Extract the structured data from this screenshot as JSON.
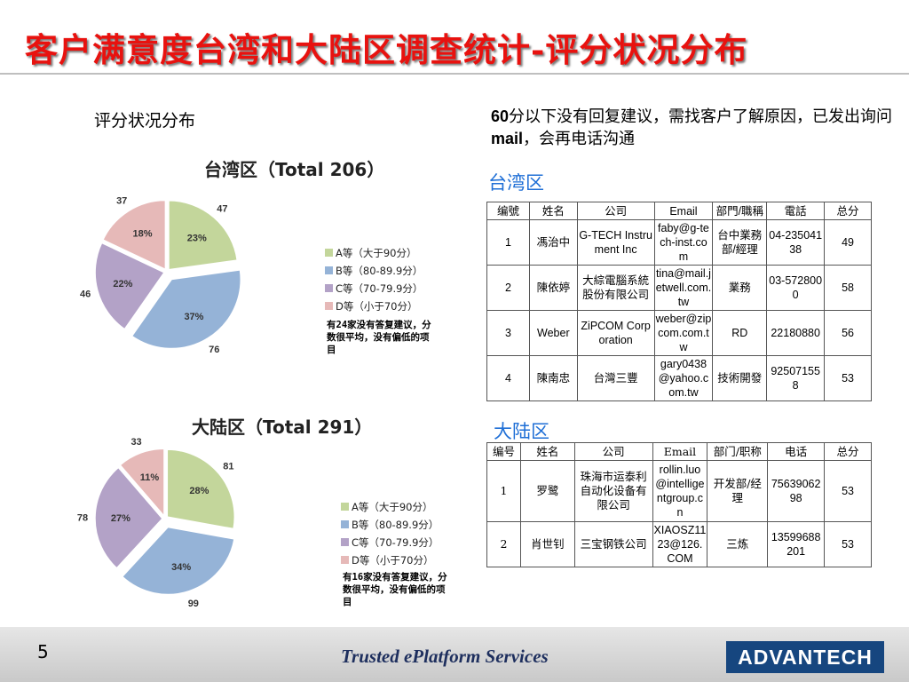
{
  "title": "客户满意度台湾和大陆区调查统计-评分状况分布",
  "left_heading": "评分状况分布",
  "note_top": {
    "num": "60",
    "part1": "分以下没有回复建议，需找客户了解原因，已发出询问",
    "bold": "mail",
    "part2": "，会再电话沟通"
  },
  "chart_data": [
    {
      "type": "pie",
      "title": "台湾区（Total 206）",
      "categories": [
        "A等（大于90分）",
        "B等（80-89.9分）",
        "C等（70-79.9分）",
        "D等（小于70分）"
      ],
      "values": [
        47,
        76,
        46,
        37
      ],
      "percent_labels": [
        "23%",
        "37%",
        "22%",
        "18%"
      ],
      "colors": [
        "#c3d69b",
        "#95b3d7",
        "#b3a2c7",
        "#e6b9b8"
      ],
      "legend": "right",
      "comment": "有24家没有答复建议，分数很平均，没有偏低的项目"
    },
    {
      "type": "pie",
      "title": "大陆区（Total 291）",
      "categories": [
        "A等（大于90分）",
        "B等（80-89.9分）",
        "C等（70-79.9分）",
        "D等（小于70分）"
      ],
      "values": [
        81,
        99,
        78,
        33
      ],
      "percent_labels": [
        "28%",
        "34%",
        "27%",
        "11%"
      ],
      "colors": [
        "#c3d69b",
        "#95b3d7",
        "#b3a2c7",
        "#e6b9b8"
      ],
      "legend": "right",
      "comment": "有16家没有答复建议，分数很平均，没有偏低的项目"
    }
  ],
  "taiwan": {
    "label": "台湾区",
    "headers": [
      "编號",
      "姓名",
      "公司",
      "Email",
      "部門/職稱",
      "電話",
      "总分"
    ],
    "rows": [
      [
        "1",
        "馮治中",
        "G-TECH Instrument Inc",
        "faby@g-tech-inst.com",
        "台中業務部/經理",
        "04-23504138",
        "49"
      ],
      [
        "2",
        "陳依婷",
        "大綜電腦系統股份有限公司",
        "tina@mail.jetwell.com.tw",
        "業務",
        "03-5728000",
        "58"
      ],
      [
        "3",
        "Weber",
        "ZiPCOM Corporation",
        "weber@zipcom.com.tw",
        "RD",
        "22180880",
        "56"
      ],
      [
        "4",
        "陳南忠",
        "台灣三豐",
        "gary0438@yahoo.com.tw",
        "技術開發",
        "925071558",
        "53"
      ]
    ]
  },
  "mainland": {
    "label": "大陆区",
    "headers": [
      "编号",
      "姓名",
      "公司",
      "Email",
      "部门/职称",
      "电话",
      "总分"
    ],
    "rows": [
      [
        "1",
        "罗鹭",
        "珠海市运泰利自动化设备有限公司",
        "rollin.luo@intelligentgroup.cn",
        "开发部/经理",
        "7563906298",
        "53"
      ],
      [
        "2",
        "肖世钊",
        "三宝钢铁公司",
        "XIAOSZ1123@126.COM",
        "三炼",
        "13599688201",
        "53"
      ]
    ]
  },
  "footer": {
    "page": "5",
    "slogan": "Trusted ePlatform Services",
    "logo": "ADVANTECH"
  }
}
